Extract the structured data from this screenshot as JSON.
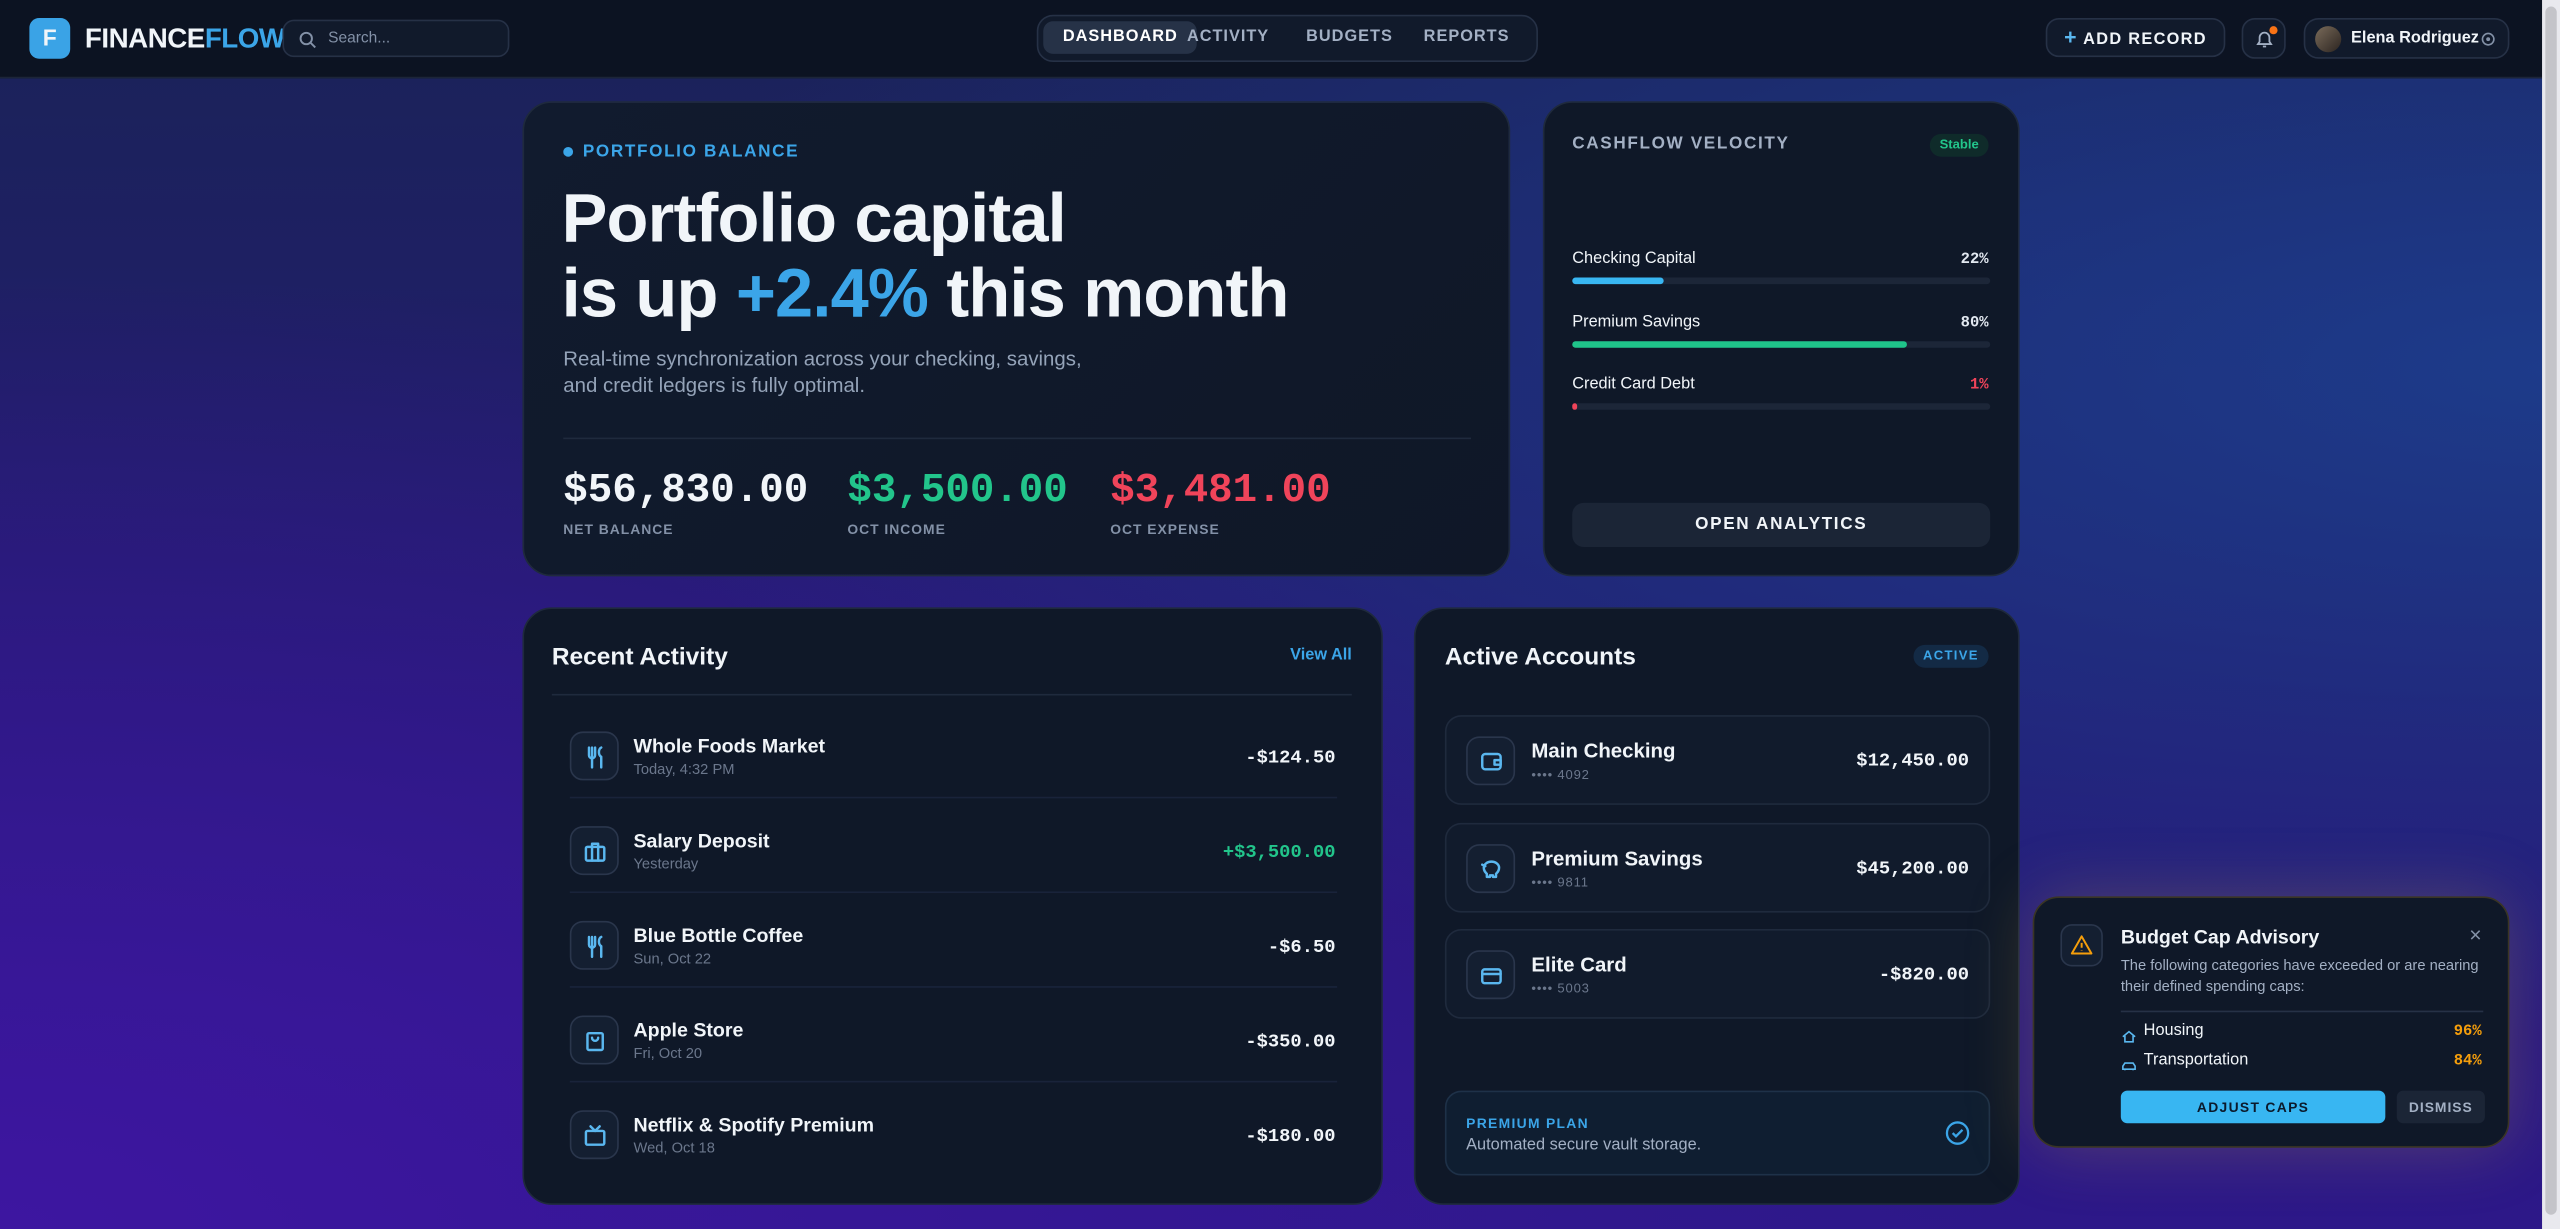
{
  "header": {
    "logo_letter": "F",
    "brand_a": "FINANCE",
    "brand_b": "FLOW",
    "search_placeholder": "Search...",
    "nav": [
      "DASHBOARD",
      "ACTIVITY",
      "BUDGETS",
      "REPORTS"
    ],
    "add_record": "ADD RECORD",
    "user_name": "Elena Rodriguez"
  },
  "hero": {
    "eyebrow": "PORTFOLIO BALANCE",
    "title_line1": "Portfolio capital",
    "title_pre": "is up",
    "highlight": "+2.4%",
    "title_post": "this month",
    "description": "Real-time synchronization across your checking, savings, and credit ledgers is fully optimal.",
    "stats": [
      {
        "value": "$56,830.00",
        "label": "NET BALANCE"
      },
      {
        "value": "$3,500.00",
        "label": "OCT INCOME"
      },
      {
        "value": "$3,481.00",
        "label": "OCT EXPENSE"
      }
    ]
  },
  "cashflow": {
    "title": "CASHFLOW VELOCITY",
    "badge": "Stable",
    "bars": [
      {
        "name": "Checking Capital",
        "value": 22,
        "label": "22%"
      },
      {
        "name": "Premium Savings",
        "value": 80,
        "label": "80%"
      },
      {
        "name": "Credit Card Debt",
        "value": 1,
        "label": "1%"
      }
    ],
    "button": "OPEN ANALYTICS"
  },
  "activity": {
    "title": "Recent Activity",
    "link": "View All",
    "items": [
      {
        "name": "Whole Foods Market",
        "time": "Today, 4:32 PM",
        "amount": "-$124.50"
      },
      {
        "name": "Salary Deposit",
        "time": "Yesterday",
        "amount": "+$3,500.00"
      },
      {
        "name": "Blue Bottle Coffee",
        "time": "Sun, Oct 22",
        "amount": "-$6.50"
      },
      {
        "name": "Apple Store",
        "time": "Fri, Oct 20",
        "amount": "-$350.00"
      },
      {
        "name": "Netflix & Spotify Premium",
        "time": "Wed, Oct 18",
        "amount": "-$180.00"
      }
    ]
  },
  "accounts": {
    "title": "Active Accounts",
    "badge": "ACTIVE",
    "items": [
      {
        "name": "Main Checking",
        "mask": "•••• 4092",
        "balance": "$12,450.00"
      },
      {
        "name": "Premium Savings",
        "mask": "•••• 9811",
        "balance": "$45,200.00"
      },
      {
        "name": "Elite Card",
        "mask": "•••• 5003",
        "balance": "-$820.00"
      }
    ],
    "plan": {
      "label": "PREMIUM PLAN",
      "text": "Automated secure vault storage."
    }
  },
  "advisory": {
    "title": "Budget Cap Advisory",
    "text": "The following categories have exceeded or are nearing their defined spending caps:",
    "items": [
      {
        "name": "Housing",
        "pct": "96%"
      },
      {
        "name": "Transportation",
        "pct": "84%"
      }
    ],
    "primary": "ADJUST CAPS",
    "secondary": "DISMISS"
  }
}
